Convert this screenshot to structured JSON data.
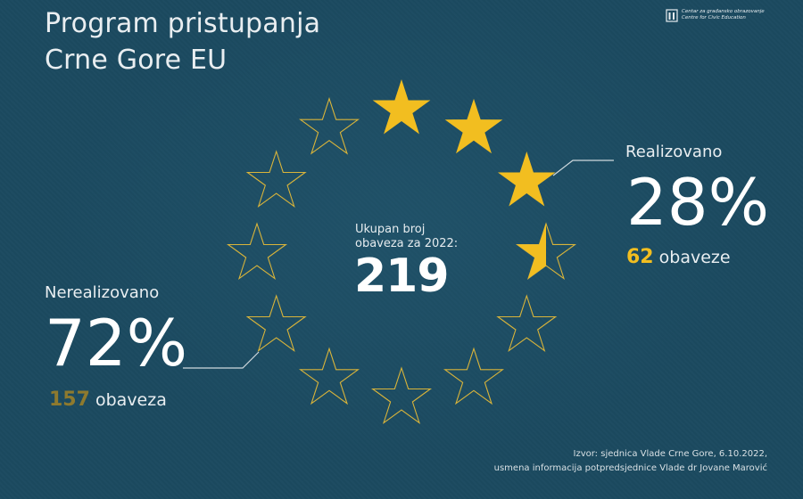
{
  "header": {
    "title_line1": "Program pristupanja",
    "title_line2": "Crne Gore EU",
    "logo_line1": "Centar za građansko obrazovanje",
    "logo_line2": "Centre for Civic Education"
  },
  "center": {
    "label_line1": "Ukupan broj",
    "label_line2": "obaveza za 2022:",
    "total": "219"
  },
  "realized": {
    "label": "Realizovano",
    "percent_text": "28%",
    "count": "62",
    "count_suffix": "obaveze"
  },
  "unrealized": {
    "label": "Nerealizovano",
    "percent_text": "72%",
    "count": "157",
    "count_suffix": "obaveza"
  },
  "footer": {
    "source_line1": "Izvor: sjednica Vlade Crne Gore, 6.10.2022,",
    "source_line2": "usmena informacija potpredsjednice Vlade dr Jovane Marović"
  },
  "colors": {
    "background": "#1b4a60",
    "accent_gold": "#f2be20",
    "muted_gold": "#8e7a2e",
    "star_outline": "#d9b43a"
  },
  "chart_data": {
    "type": "pie",
    "categories": [
      "Realizovano",
      "Nerealizovano"
    ],
    "values": [
      28,
      72
    ],
    "counts": [
      62,
      157
    ],
    "total": 219,
    "stars_total": 12,
    "stars_filled": 3.5
  }
}
